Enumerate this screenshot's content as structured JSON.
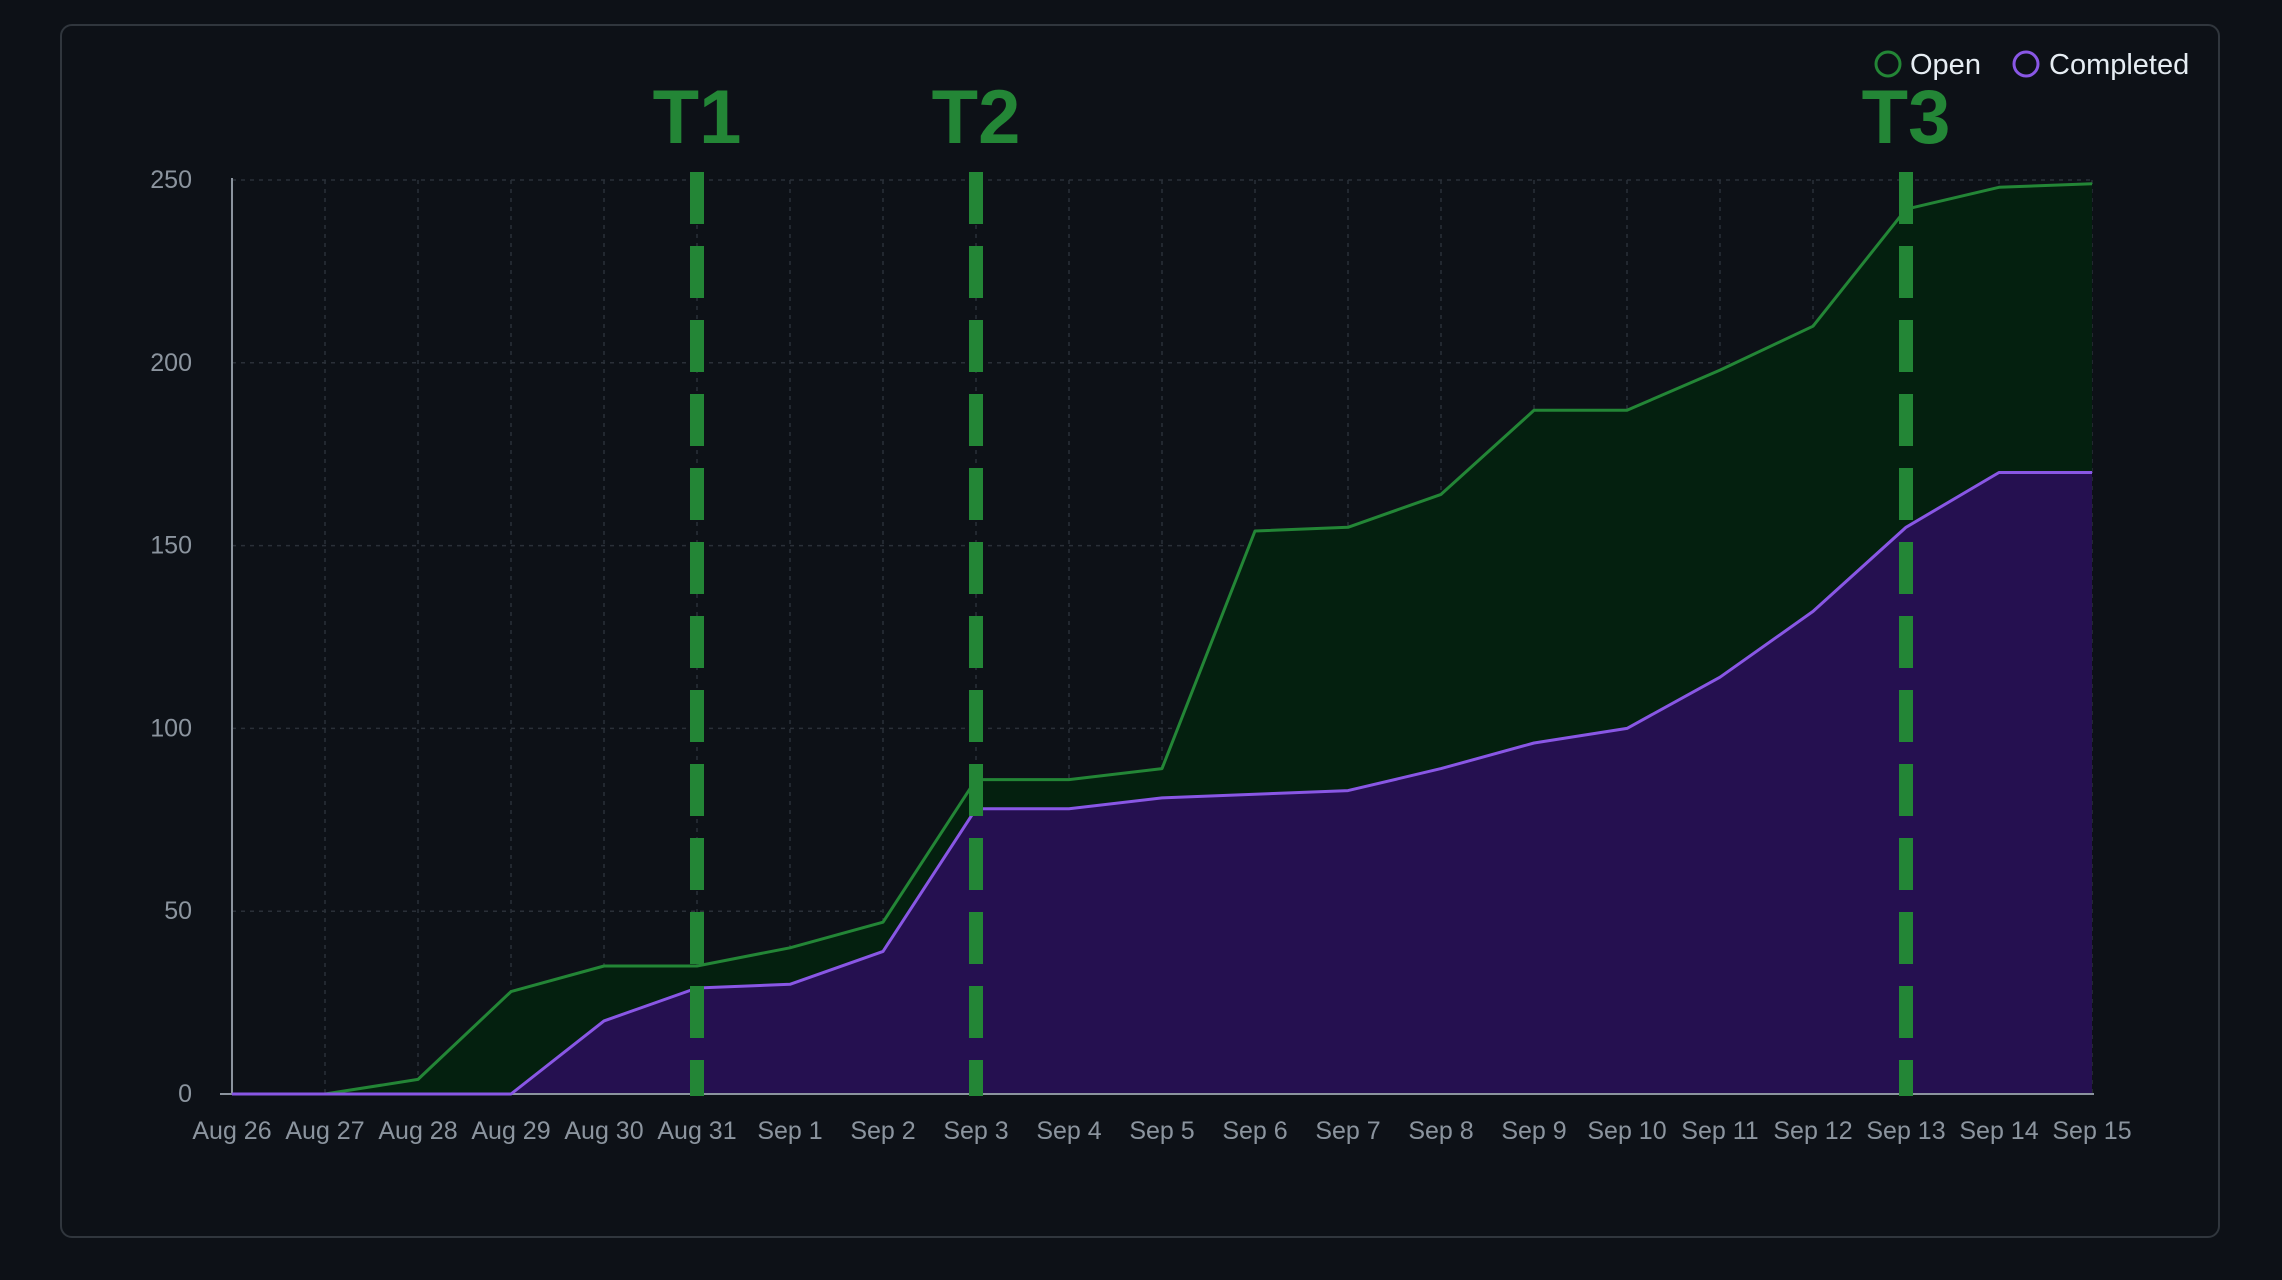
{
  "chart_data": {
    "type": "area",
    "categories": [
      "Aug 26",
      "Aug 27",
      "Aug 28",
      "Aug 29",
      "Aug 30",
      "Aug 31",
      "Sep 1",
      "Sep 2",
      "Sep 3",
      "Sep 4",
      "Sep 5",
      "Sep 6",
      "Sep 7",
      "Sep 8",
      "Sep 9",
      "Sep 10",
      "Sep 11",
      "Sep 12",
      "Sep 13",
      "Sep 14",
      "Sep 15"
    ],
    "series": [
      {
        "name": "Open",
        "color": "#238636",
        "fill": "#04200f",
        "values": [
          0,
          0,
          4,
          28,
          35,
          35,
          40,
          47,
          86,
          86,
          89,
          154,
          155,
          164,
          187,
          187,
          198,
          210,
          242,
          248,
          249
        ]
      },
      {
        "name": "Completed",
        "color": "#8957e5",
        "fill": "#251050",
        "values": [
          0,
          0,
          0,
          0,
          20,
          29,
          30,
          39,
          78,
          78,
          81,
          82,
          83,
          89,
          96,
          100,
          114,
          132,
          155,
          170,
          170
        ]
      }
    ],
    "yticks": [
      "0",
      "50",
      "100",
      "150",
      "200",
      "250"
    ],
    "ylim": [
      0,
      250
    ],
    "grid": true,
    "legend": "top-right",
    "markers": [
      {
        "label": "T1",
        "x": "Aug 31"
      },
      {
        "label": "T2",
        "x": "Sep 3"
      },
      {
        "label": "T3",
        "x": "Sep 13"
      }
    ],
    "marker_color": "#238636"
  }
}
